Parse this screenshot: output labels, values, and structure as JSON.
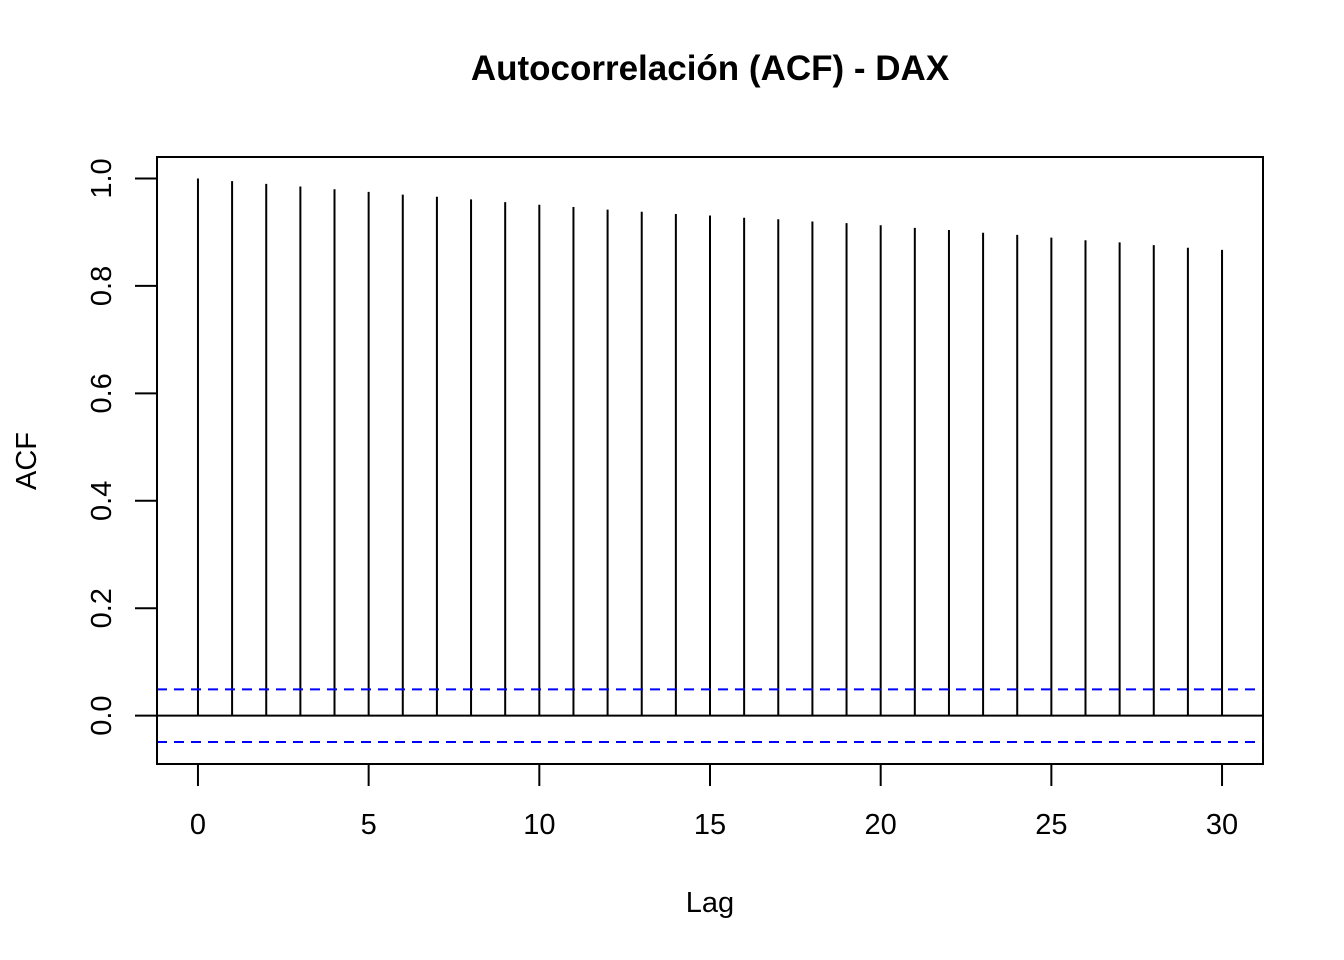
{
  "chart_data": {
    "type": "bar",
    "title": "Autocorrelación (ACF) - DAX",
    "xlabel": "Lag",
    "ylabel": "ACF",
    "x": [
      0,
      1,
      2,
      3,
      4,
      5,
      6,
      7,
      8,
      9,
      10,
      11,
      12,
      13,
      14,
      15,
      16,
      17,
      18,
      19,
      20,
      21,
      22,
      23,
      24,
      25,
      26,
      27,
      28,
      29,
      30
    ],
    "values": [
      1.0,
      0.995,
      0.99,
      0.985,
      0.98,
      0.975,
      0.97,
      0.966,
      0.961,
      0.956,
      0.951,
      0.947,
      0.942,
      0.938,
      0.934,
      0.931,
      0.927,
      0.924,
      0.92,
      0.917,
      0.913,
      0.908,
      0.904,
      0.899,
      0.895,
      0.89,
      0.885,
      0.881,
      0.876,
      0.871,
      0.867
    ],
    "xlim": [
      -1.2,
      31.2
    ],
    "ylim": [
      -0.09,
      1.04
    ],
    "xticks": [
      0,
      5,
      10,
      15,
      20,
      25,
      30
    ],
    "yticks": [
      0.0,
      0.2,
      0.4,
      0.6,
      0.8,
      1.0
    ],
    "xtick_labels": [
      "0",
      "5",
      "10",
      "15",
      "20",
      "25",
      "30"
    ],
    "ytick_labels": [
      "0.0",
      "0.2",
      "0.4",
      "0.6",
      "0.8",
      "1.0"
    ],
    "confidence_bound": 0.049,
    "confidence_color": "#0000ff",
    "bar_color": "#000000",
    "grid": false,
    "legend": "none"
  }
}
